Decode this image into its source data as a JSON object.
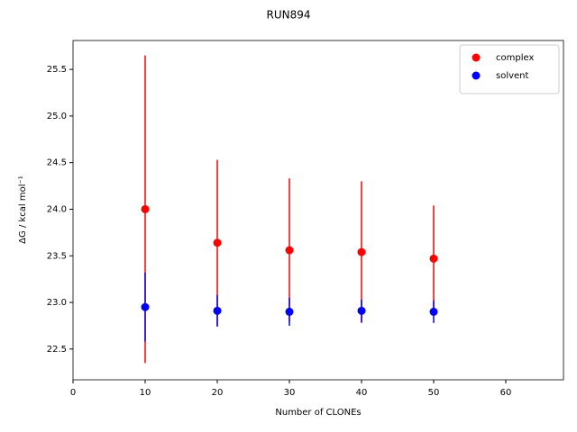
{
  "chart_data": {
    "type": "scatter",
    "title": "RUN894",
    "x_label": "Number of CLONEs",
    "y_label": "ΔG / kcal mol⁻¹",
    "x": [
      10,
      20,
      30,
      40,
      50
    ],
    "series": [
      {
        "name": "complex",
        "color": "#ff0000",
        "values": [
          24.0,
          23.64,
          23.56,
          23.54,
          23.47
        ],
        "errors": [
          1.65,
          0.89,
          0.77,
          0.76,
          0.57
        ]
      },
      {
        "name": "solvent",
        "color": "#0000ff",
        "values": [
          22.95,
          22.91,
          22.9,
          22.91,
          22.9
        ],
        "errors": [
          0.37,
          0.17,
          0.15,
          0.12,
          0.12
        ]
      }
    ],
    "xlim": [
      0,
      68
    ],
    "ylim": [
      22.17,
      25.81
    ],
    "xticks": [
      0,
      10,
      20,
      30,
      40,
      50,
      60
    ],
    "yticks": [
      {
        "value": 22.5,
        "label": "22.5"
      },
      {
        "value": 23.0,
        "label": "23.0"
      },
      {
        "value": 23.5,
        "label": "23.5"
      },
      {
        "value": 24.0,
        "label": "24.0"
      },
      {
        "value": 24.5,
        "label": "24.5"
      },
      {
        "value": 25.0,
        "label": "25.0"
      },
      {
        "value": 25.5,
        "label": "25.5"
      }
    ],
    "legend": "upper right",
    "grid": false
  }
}
